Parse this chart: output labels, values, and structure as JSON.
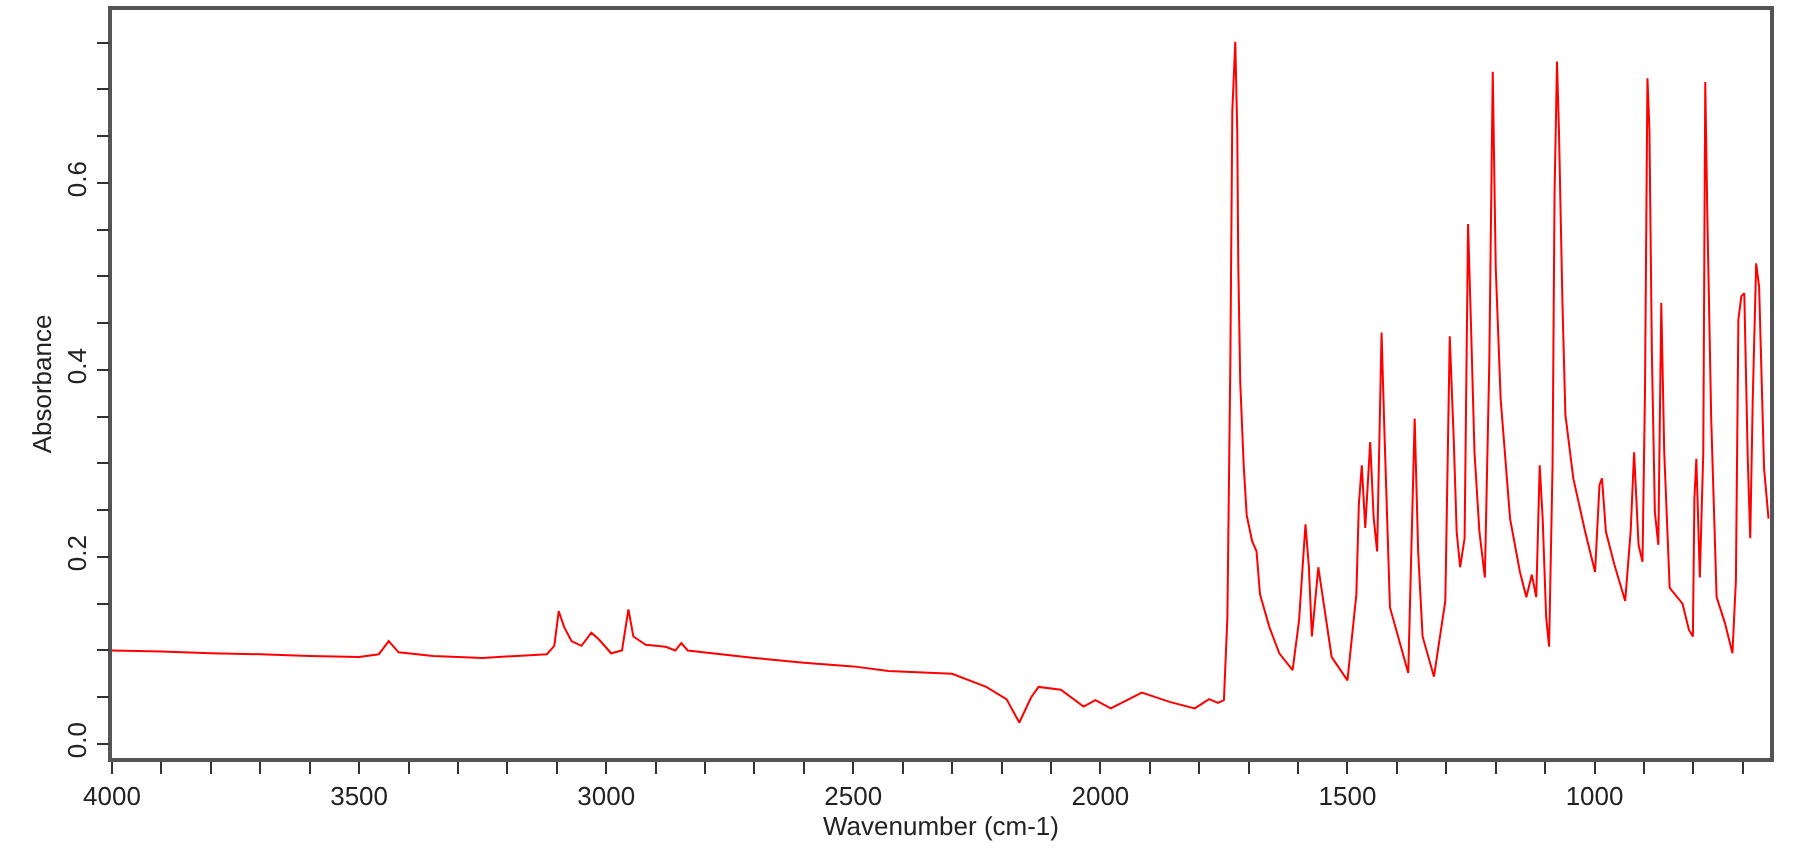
{
  "chart_data": {
    "type": "line",
    "xlabel": "Wavenumber (cm-1)",
    "ylabel": "Absorbance",
    "grid": false,
    "marker": "none",
    "line_style": "solid",
    "xlim": [
      4000,
      645
    ],
    "ylim": [
      -0.015,
      0.785
    ],
    "xticks": [
      4000,
      {
        "value": 3900,
        "label": null
      },
      {
        "value": 3800,
        "label": null
      },
      {
        "value": 3700,
        "label": null
      },
      {
        "value": 3600,
        "label": null
      },
      3500,
      {
        "value": 3400,
        "label": null
      },
      {
        "value": 3300,
        "label": null
      },
      {
        "value": 3200,
        "label": null
      },
      {
        "value": 3100,
        "label": null
      },
      3000,
      {
        "value": 2900,
        "label": null
      },
      {
        "value": 2800,
        "label": null
      },
      {
        "value": 2700,
        "label": null
      },
      {
        "value": 2600,
        "label": null
      },
      2500,
      {
        "value": 2400,
        "label": null
      },
      {
        "value": 2300,
        "label": null
      },
      {
        "value": 2200,
        "label": null
      },
      {
        "value": 2100,
        "label": null
      },
      2000,
      {
        "value": 1900,
        "label": null
      },
      {
        "value": 1800,
        "label": null
      },
      {
        "value": 1700,
        "label": null
      },
      {
        "value": 1600,
        "label": null
      },
      1500,
      {
        "value": 1400,
        "label": null
      },
      {
        "value": 1300,
        "label": null
      },
      {
        "value": 1200,
        "label": null
      },
      {
        "value": 1100,
        "label": null
      },
      1000,
      {
        "value": 900,
        "label": null
      },
      {
        "value": 800,
        "label": null
      },
      {
        "value": 700,
        "label": null
      }
    ],
    "yticks": [
      {
        "value": 0,
        "label": "0.0"
      },
      {
        "value": 0.05,
        "label": null
      },
      {
        "value": 0.1,
        "label": null
      },
      {
        "value": 0.15,
        "label": null
      },
      {
        "value": 0.2,
        "label": "0.2"
      },
      {
        "value": 0.25,
        "label": null
      },
      {
        "value": 0.3,
        "label": null
      },
      {
        "value": 0.35,
        "label": null
      },
      {
        "value": 0.4,
        "label": "0.4"
      },
      {
        "value": 0.45,
        "label": null
      },
      {
        "value": 0.5,
        "label": null
      },
      {
        "value": 0.55,
        "label": null
      },
      {
        "value": 0.6,
        "label": "0.6"
      },
      {
        "value": 0.65,
        "label": null
      },
      {
        "value": 0.7,
        "label": null
      },
      {
        "value": 0.75,
        "label": null
      }
    ],
    "series": [
      {
        "color": "#ff0000",
        "x": [
          4000,
          3900,
          3800,
          3700,
          3600,
          3500,
          3460,
          3440,
          3420,
          3350,
          3250,
          3120,
          3105,
          3096,
          3085,
          3070,
          3050,
          3030,
          3015,
          2990,
          2968,
          2955,
          2945,
          2920,
          2880,
          2860,
          2848,
          2835,
          2700,
          2600,
          2500,
          2429,
          2300,
          2231,
          2190,
          2164,
          2140,
          2125,
          2080,
          2034,
          2010,
          1979,
          1916,
          1860,
          1809,
          1780,
          1762,
          1750,
          1743,
          1737,
          1733,
          1727,
          1723,
          1721,
          1717,
          1710,
          1704,
          1693,
          1684,
          1677,
          1658,
          1638,
          1611,
          1598,
          1585,
          1578,
          1572,
          1559,
          1552,
          1532,
          1500,
          1482,
          1477,
          1471,
          1464,
          1454,
          1447,
          1440,
          1431,
          1425,
          1414,
          1377,
          1364,
          1357,
          1348,
          1325,
          1302,
          1293,
          1285,
          1279,
          1272,
          1263,
          1256,
          1250,
          1243,
          1233,
          1222,
          1213,
          1206,
          1200,
          1190,
          1171,
          1151,
          1138,
          1127,
          1118,
          1111,
          1105,
          1098,
          1092,
          1085,
          1081,
          1076,
          1072,
          1065,
          1059,
          1043,
          1019,
          999,
          990,
          985,
          977,
          960,
          938,
          927,
          920,
          911,
          903,
          898,
          893,
          889,
          884,
          878,
          871,
          865,
          859,
          848,
          822,
          809,
          801,
          798,
          794,
          787,
          780,
          776,
          772,
          764,
          753,
          736,
          721,
          714,
          709,
          703,
          697,
          690,
          685,
          680,
          673,
          667,
          657,
          648
        ],
        "values": [
          0.1,
          0.099,
          0.097,
          0.096,
          0.094,
          0.093,
          0.096,
          0.11,
          0.098,
          0.094,
          0.092,
          0.096,
          0.105,
          0.142,
          0.125,
          0.11,
          0.105,
          0.119,
          0.112,
          0.097,
          0.1,
          0.144,
          0.115,
          0.106,
          0.104,
          0.1,
          0.108,
          0.1,
          0.092,
          0.087,
          0.083,
          0.078,
          0.075,
          0.061,
          0.048,
          0.023,
          0.05,
          0.061,
          0.058,
          0.04,
          0.047,
          0.038,
          0.055,
          0.045,
          0.038,
          0.048,
          0.044,
          0.047,
          0.135,
          0.408,
          0.677,
          0.751,
          0.655,
          0.514,
          0.387,
          0.298,
          0.245,
          0.217,
          0.206,
          0.16,
          0.125,
          0.097,
          0.079,
          0.132,
          0.235,
          0.189,
          0.115,
          0.189,
          0.164,
          0.093,
          0.068,
          0.16,
          0.256,
          0.298,
          0.231,
          0.323,
          0.242,
          0.206,
          0.44,
          0.33,
          0.146,
          0.076,
          0.348,
          0.206,
          0.115,
          0.072,
          0.153,
          0.436,
          0.326,
          0.227,
          0.189,
          0.22,
          0.556,
          0.447,
          0.312,
          0.227,
          0.178,
          0.408,
          0.719,
          0.51,
          0.369,
          0.241,
          0.184,
          0.157,
          0.181,
          0.157,
          0.298,
          0.241,
          0.136,
          0.104,
          0.298,
          0.588,
          0.73,
          0.655,
          0.472,
          0.352,
          0.284,
          0.227,
          0.184,
          0.277,
          0.284,
          0.227,
          0.192,
          0.153,
          0.227,
          0.312,
          0.213,
          0.195,
          0.376,
          0.712,
          0.658,
          0.418,
          0.248,
          0.213,
          0.472,
          0.312,
          0.167,
          0.15,
          0.122,
          0.115,
          0.262,
          0.305,
          0.178,
          0.312,
          0.708,
          0.571,
          0.348,
          0.157,
          0.129,
          0.097,
          0.175,
          0.454,
          0.479,
          0.482,
          0.305,
          0.22,
          0.366,
          0.514,
          0.489,
          0.295,
          0.241
        ]
      }
    ]
  }
}
